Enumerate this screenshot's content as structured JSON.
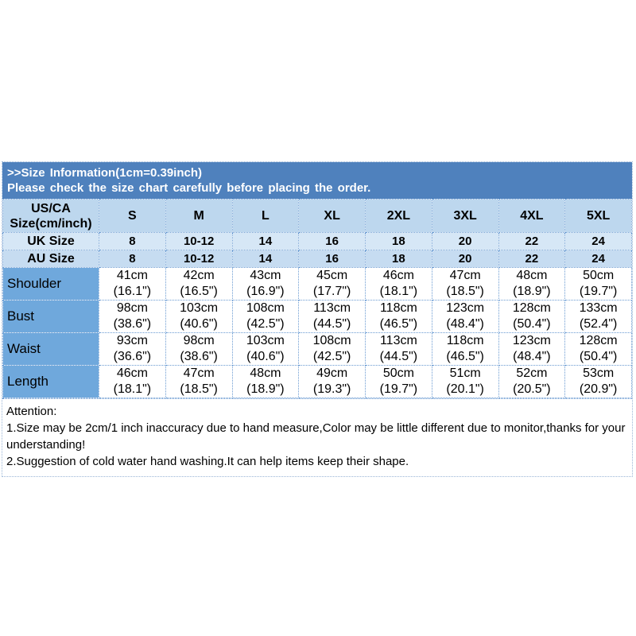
{
  "colors": {
    "title_bar_bg": "#4f81bd",
    "title_bar_text": "#ffffff",
    "header_row_bg": "#bdd7ee",
    "uk_row_bg": "#d6e7f6",
    "au_row_bg": "#c6dcf1",
    "label_col_bg": "#6fa8dc",
    "grid_dotted": "#6b9bd2",
    "cell_text": "#000000"
  },
  "title_bar": {
    "line1": ">>Size Information(1cm=0.39inch)",
    "line2": "Please check the size chart carefully before placing the order."
  },
  "table": {
    "corner": {
      "line1": "US/CA",
      "line2": "Size(cm/inch)"
    },
    "size_headers": [
      "S",
      "M",
      "L",
      "XL",
      "2XL",
      "3XL",
      "4XL",
      "5XL"
    ],
    "uk": {
      "label": "UK Size",
      "values": [
        "8",
        "10-12",
        "14",
        "16",
        "18",
        "20",
        "22",
        "24"
      ]
    },
    "au": {
      "label": "AU Size",
      "values": [
        "8",
        "10-12",
        "14",
        "16",
        "18",
        "20",
        "22",
        "24"
      ]
    },
    "measurements": [
      {
        "label": "Shoulder",
        "values": [
          {
            "cm": "41cm",
            "inch": "(16.1\")"
          },
          {
            "cm": "42cm",
            "inch": "(16.5\")"
          },
          {
            "cm": "43cm",
            "inch": "(16.9\")"
          },
          {
            "cm": "45cm",
            "inch": "(17.7\")"
          },
          {
            "cm": "46cm",
            "inch": "(18.1\")"
          },
          {
            "cm": "47cm",
            "inch": "(18.5\")"
          },
          {
            "cm": "48cm",
            "inch": "(18.9\")"
          },
          {
            "cm": "50cm",
            "inch": "(19.7\")"
          }
        ]
      },
      {
        "label": "Bust",
        "values": [
          {
            "cm": "98cm",
            "inch": "(38.6\")"
          },
          {
            "cm": "103cm",
            "inch": "(40.6\")"
          },
          {
            "cm": "108cm",
            "inch": "(42.5\")"
          },
          {
            "cm": "113cm",
            "inch": "(44.5\")"
          },
          {
            "cm": "118cm",
            "inch": "(46.5\")"
          },
          {
            "cm": "123cm",
            "inch": "(48.4\")"
          },
          {
            "cm": "128cm",
            "inch": "(50.4\")"
          },
          {
            "cm": "133cm",
            "inch": "(52.4\")"
          }
        ]
      },
      {
        "label": "Waist",
        "values": [
          {
            "cm": "93cm",
            "inch": "(36.6\")"
          },
          {
            "cm": "98cm",
            "inch": "(38.6\")"
          },
          {
            "cm": "103cm",
            "inch": "(40.6\")"
          },
          {
            "cm": "108cm",
            "inch": "(42.5\")"
          },
          {
            "cm": "113cm",
            "inch": "(44.5\")"
          },
          {
            "cm": "118cm",
            "inch": "(46.5\")"
          },
          {
            "cm": "123cm",
            "inch": "(48.4\")"
          },
          {
            "cm": "128cm",
            "inch": "(50.4\")"
          }
        ]
      },
      {
        "label": "Length",
        "values": [
          {
            "cm": "46cm",
            "inch": "(18.1\")"
          },
          {
            "cm": "47cm",
            "inch": "(18.5\")"
          },
          {
            "cm": "48cm",
            "inch": "(18.9\")"
          },
          {
            "cm": "49cm",
            "inch": "(19.3\")"
          },
          {
            "cm": "50cm",
            "inch": "(19.7\")"
          },
          {
            "cm": "51cm",
            "inch": "(20.1\")"
          },
          {
            "cm": "52cm",
            "inch": "(20.5\")"
          },
          {
            "cm": "53cm",
            "inch": "(20.9\")"
          }
        ]
      }
    ]
  },
  "attention": {
    "heading": "Attention:",
    "note1": "1.Size may be 2cm/1 inch inaccuracy due to hand measure,Color may be little different due to monitor,thanks for your understanding!",
    "note2": "2.Suggestion of cold water hand washing.It can help items keep their shape."
  }
}
